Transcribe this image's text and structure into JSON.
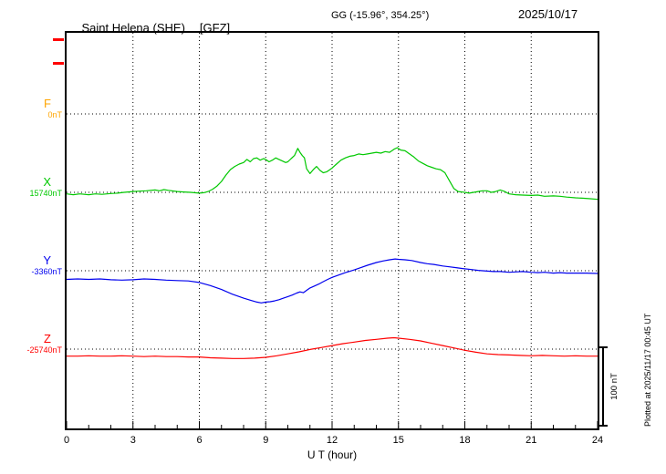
{
  "header": {
    "station_name": "Saint Helena (SHE)",
    "institute": "[GFZ]",
    "gg_coords": "GG (-15.96°, 354.25°)",
    "date": "2025/10/17"
  },
  "xaxis": {
    "label": "U T (hour)"
  },
  "scale_bar": {
    "label": "100 nT"
  },
  "plotted_note": "Plotted at 2025/11/17 00:45 UT",
  "chart_data": {
    "type": "line",
    "title": "Saint Helena (SHE) [GFZ] magnetogram, 2025/10/17",
    "xlabel": "U T (hour)",
    "x_range": [
      0,
      24
    ],
    "x_ticks": [
      0,
      3,
      6,
      9,
      12,
      15,
      18,
      21,
      24
    ],
    "x_minor_tick_every_hours": 1,
    "grid": "dotted vertical lines at 3-hour ticks; dotted horizontal line at each trace baseline",
    "legend_position": "left, one colored letter + baseline value per trace",
    "scale_bar_nT": 100,
    "units": "points = [UT hour, offset in nT from that trace's baseline value]",
    "series": [
      {
        "name": "F",
        "color": "#FFA500",
        "baseline_label": "0nT",
        "baseline_nT": 0,
        "points": []
      },
      {
        "name": "X",
        "color": "#00C800",
        "baseline_label": "15740nT",
        "baseline_nT": 15740,
        "points": [
          [
            0,
            -2
          ],
          [
            0.3,
            -3
          ],
          [
            0.6,
            -2
          ],
          [
            1,
            -3
          ],
          [
            1.3,
            -2
          ],
          [
            1.6,
            -2.5
          ],
          [
            2,
            -1.5
          ],
          [
            2.3,
            -1
          ],
          [
            2.6,
            0
          ],
          [
            3,
            1
          ],
          [
            3.3,
            1.5
          ],
          [
            3.6,
            2
          ],
          [
            4,
            3
          ],
          [
            4.2,
            2
          ],
          [
            4.4,
            3.5
          ],
          [
            4.6,
            2.5
          ],
          [
            5,
            1
          ],
          [
            5.3,
            0.5
          ],
          [
            5.6,
            0
          ],
          [
            6,
            -1
          ],
          [
            6.2,
            -0.5
          ],
          [
            6.4,
            1
          ],
          [
            6.6,
            4
          ],
          [
            6.8,
            8
          ],
          [
            7,
            14
          ],
          [
            7.2,
            22
          ],
          [
            7.4,
            29
          ],
          [
            7.6,
            33
          ],
          [
            7.8,
            36
          ],
          [
            8,
            38
          ],
          [
            8.15,
            42
          ],
          [
            8.3,
            39
          ],
          [
            8.45,
            43
          ],
          [
            8.6,
            44
          ],
          [
            8.75,
            41
          ],
          [
            8.9,
            43
          ],
          [
            9,
            42
          ],
          [
            9.15,
            39
          ],
          [
            9.3,
            41
          ],
          [
            9.45,
            44
          ],
          [
            9.6,
            42
          ],
          [
            9.75,
            40
          ],
          [
            9.9,
            38
          ],
          [
            10,
            39
          ],
          [
            10.15,
            43
          ],
          [
            10.3,
            47
          ],
          [
            10.45,
            56
          ],
          [
            10.55,
            51
          ],
          [
            10.65,
            47
          ],
          [
            10.75,
            44
          ],
          [
            10.85,
            30
          ],
          [
            11,
            24
          ],
          [
            11.15,
            29
          ],
          [
            11.3,
            33
          ],
          [
            11.45,
            28
          ],
          [
            11.6,
            25
          ],
          [
            11.75,
            26
          ],
          [
            11.9,
            29
          ],
          [
            12,
            31
          ],
          [
            12.2,
            36
          ],
          [
            12.4,
            41
          ],
          [
            12.6,
            44
          ],
          [
            12.8,
            46
          ],
          [
            13,
            47
          ],
          [
            13.2,
            49
          ],
          [
            13.4,
            48
          ],
          [
            13.6,
            49
          ],
          [
            13.8,
            50
          ],
          [
            14,
            51
          ],
          [
            14.2,
            50
          ],
          [
            14.4,
            52
          ],
          [
            14.6,
            51
          ],
          [
            14.8,
            55
          ],
          [
            14.95,
            57
          ],
          [
            15.1,
            54
          ],
          [
            15.3,
            53
          ],
          [
            15.5,
            49
          ],
          [
            15.7,
            45
          ],
          [
            15.9,
            40
          ],
          [
            16.1,
            37
          ],
          [
            16.3,
            34
          ],
          [
            16.5,
            32
          ],
          [
            16.7,
            30
          ],
          [
            16.9,
            29
          ],
          [
            17.1,
            25
          ],
          [
            17.3,
            15
          ],
          [
            17.5,
            5
          ],
          [
            17.7,
            1
          ],
          [
            18,
            0
          ],
          [
            18.2,
            -1
          ],
          [
            18.4,
            0
          ],
          [
            18.6,
            1
          ],
          [
            18.8,
            2
          ],
          [
            19,
            2
          ],
          [
            19.2,
            0
          ],
          [
            19.4,
            1
          ],
          [
            19.6,
            3
          ],
          [
            19.8,
            1
          ],
          [
            20,
            -2
          ],
          [
            20.3,
            -3
          ],
          [
            20.6,
            -3.5
          ],
          [
            21,
            -4
          ],
          [
            21.3,
            -3.5
          ],
          [
            21.6,
            -5
          ],
          [
            22,
            -4.5
          ],
          [
            22.3,
            -5
          ],
          [
            22.6,
            -6
          ],
          [
            23,
            -7
          ],
          [
            23.3,
            -7.5
          ],
          [
            23.6,
            -8
          ],
          [
            24,
            -9
          ]
        ]
      },
      {
        "name": "Y",
        "color": "#0000EE",
        "baseline_label": "-3360nT",
        "baseline_nT": -3360,
        "points": [
          [
            0,
            -11
          ],
          [
            0.5,
            -10.5
          ],
          [
            1,
            -11
          ],
          [
            1.5,
            -10.5
          ],
          [
            2,
            -11.5
          ],
          [
            2.5,
            -12
          ],
          [
            3,
            -11.5
          ],
          [
            3.5,
            -10.5
          ],
          [
            4,
            -11
          ],
          [
            4.5,
            -12
          ],
          [
            5,
            -12.5
          ],
          [
            5.5,
            -13
          ],
          [
            6,
            -15
          ],
          [
            6.5,
            -19
          ],
          [
            7,
            -24
          ],
          [
            7.5,
            -30
          ],
          [
            8,
            -35
          ],
          [
            8.3,
            -37.5
          ],
          [
            8.6,
            -40
          ],
          [
            8.8,
            -41
          ],
          [
            9,
            -40
          ],
          [
            9.2,
            -39.5
          ],
          [
            9.4,
            -38.5
          ],
          [
            9.6,
            -37
          ],
          [
            9.8,
            -35
          ],
          [
            10,
            -33
          ],
          [
            10.2,
            -31
          ],
          [
            10.4,
            -28.5
          ],
          [
            10.55,
            -27
          ],
          [
            10.7,
            -28
          ],
          [
            10.85,
            -25
          ],
          [
            11,
            -22
          ],
          [
            11.2,
            -19.5
          ],
          [
            11.4,
            -17
          ],
          [
            11.6,
            -14
          ],
          [
            11.8,
            -11
          ],
          [
            12,
            -8.5
          ],
          [
            12.3,
            -5.5
          ],
          [
            12.6,
            -2.5
          ],
          [
            13,
            1
          ],
          [
            13.3,
            4
          ],
          [
            13.6,
            7
          ],
          [
            14,
            10.5
          ],
          [
            14.3,
            12.5
          ],
          [
            14.6,
            14
          ],
          [
            14.85,
            15
          ],
          [
            15,
            14.5
          ],
          [
            15.3,
            14
          ],
          [
            15.6,
            13
          ],
          [
            16,
            10.5
          ],
          [
            16.3,
            9
          ],
          [
            16.6,
            8
          ],
          [
            17,
            6
          ],
          [
            17.3,
            5
          ],
          [
            17.6,
            4
          ],
          [
            18,
            2.5
          ],
          [
            18.3,
            1.5
          ],
          [
            18.6,
            0.5
          ],
          [
            19,
            -0.5
          ],
          [
            19.3,
            -1
          ],
          [
            19.6,
            -1
          ],
          [
            20,
            -2
          ],
          [
            20.3,
            -1.5
          ],
          [
            20.6,
            -1
          ],
          [
            21,
            -2
          ],
          [
            21.3,
            -2.5
          ],
          [
            21.6,
            -2
          ],
          [
            22,
            -3
          ],
          [
            22.3,
            -2.5
          ],
          [
            22.6,
            -3
          ],
          [
            23,
            -3
          ],
          [
            23.5,
            -3
          ],
          [
            24,
            -3.5
          ]
        ]
      },
      {
        "name": "Z",
        "color": "#FF0000",
        "baseline_label": "-25740nT",
        "baseline_nT": -25740,
        "points": [
          [
            0,
            -9
          ],
          [
            0.5,
            -9
          ],
          [
            1,
            -8.5
          ],
          [
            1.5,
            -9
          ],
          [
            2,
            -9
          ],
          [
            2.5,
            -8.5
          ],
          [
            3,
            -9
          ],
          [
            3.5,
            -9.5
          ],
          [
            4,
            -9
          ],
          [
            4.5,
            -9.5
          ],
          [
            5,
            -9.5
          ],
          [
            5.5,
            -10
          ],
          [
            6,
            -10
          ],
          [
            6.5,
            -11
          ],
          [
            7,
            -11.5
          ],
          [
            7.5,
            -12
          ],
          [
            8,
            -12
          ],
          [
            8.5,
            -11.5
          ],
          [
            9,
            -10.5
          ],
          [
            9.5,
            -8.5
          ],
          [
            10,
            -6
          ],
          [
            10.5,
            -3.5
          ],
          [
            11,
            -0.5
          ],
          [
            11.5,
            2
          ],
          [
            12,
            4.5
          ],
          [
            12.5,
            7
          ],
          [
            13,
            9
          ],
          [
            13.5,
            11
          ],
          [
            14,
            12.5
          ],
          [
            14.5,
            14
          ],
          [
            14.8,
            14.5
          ],
          [
            15,
            14
          ],
          [
            15.5,
            12.5
          ],
          [
            16,
            10.5
          ],
          [
            16.5,
            7.5
          ],
          [
            17,
            4.5
          ],
          [
            17.5,
            1.5
          ],
          [
            18,
            -1.5
          ],
          [
            18.5,
            -4
          ],
          [
            19,
            -6
          ],
          [
            19.5,
            -7
          ],
          [
            20,
            -7.5
          ],
          [
            20.5,
            -8
          ],
          [
            21,
            -8.5
          ],
          [
            21.5,
            -8
          ],
          [
            22,
            -8.5
          ],
          [
            22.5,
            -9
          ],
          [
            23,
            -8.5
          ],
          [
            23.5,
            -9
          ],
          [
            24,
            -9
          ]
        ]
      }
    ]
  }
}
